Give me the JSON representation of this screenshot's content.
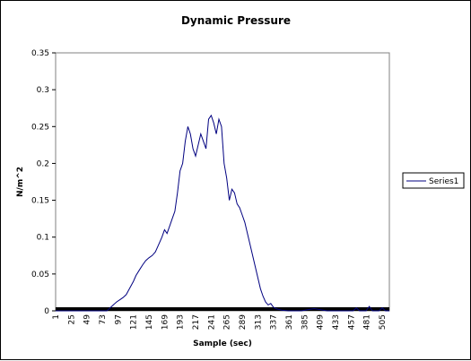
{
  "chart_data": {
    "type": "line",
    "title": "Dynamic Pressure",
    "xlabel": "Sample (sec)",
    "ylabel": "N/m^2",
    "ylim": [
      0,
      0.35
    ],
    "yticks": [
      "0",
      "0.05",
      "0.1",
      "0.15",
      "0.2",
      "0.25",
      "0.3",
      "0.35"
    ],
    "xlim": [
      1,
      516
    ],
    "xticks": [
      "1",
      "25",
      "49",
      "73",
      "97",
      "121",
      "145",
      "169",
      "193",
      "217",
      "241",
      "265",
      "289",
      "313",
      "337",
      "361",
      "385",
      "409",
      "433",
      "457",
      "481",
      "505"
    ],
    "grid": false,
    "legend_position": "right",
    "colors": {
      "series": "#000080",
      "axis": "#000000",
      "band": "#000000"
    },
    "series": [
      {
        "name": "Series1",
        "x": [
          1,
          80,
          85,
          90,
          95,
          100,
          105,
          110,
          115,
          121,
          125,
          130,
          135,
          140,
          145,
          150,
          155,
          160,
          165,
          169,
          173,
          177,
          181,
          185,
          189,
          193,
          197,
          201,
          205,
          209,
          213,
          217,
          221,
          225,
          229,
          233,
          237,
          241,
          245,
          249,
          253,
          257,
          261,
          265,
          269,
          273,
          277,
          281,
          285,
          289,
          293,
          297,
          301,
          305,
          309,
          313,
          317,
          321,
          325,
          329,
          333,
          337,
          341,
          345,
          350,
          360,
          380,
          400,
          420,
          440,
          460,
          465,
          470,
          480,
          485,
          490,
          500,
          505,
          510,
          516
        ],
        "values": [
          0,
          0,
          0.004,
          0.008,
          0.012,
          0.015,
          0.018,
          0.022,
          0.03,
          0.04,
          0.048,
          0.055,
          0.062,
          0.068,
          0.072,
          0.075,
          0.08,
          0.09,
          0.1,
          0.11,
          0.105,
          0.115,
          0.125,
          0.135,
          0.16,
          0.19,
          0.2,
          0.23,
          0.25,
          0.24,
          0.22,
          0.21,
          0.225,
          0.24,
          0.23,
          0.22,
          0.26,
          0.265,
          0.255,
          0.24,
          0.26,
          0.25,
          0.2,
          0.18,
          0.15,
          0.165,
          0.16,
          0.145,
          0.14,
          0.13,
          0.12,
          0.105,
          0.09,
          0.075,
          0.06,
          0.045,
          0.03,
          0.02,
          0.012,
          0.008,
          0.01,
          0.005,
          0.003,
          0.002,
          0.001,
          0,
          0,
          0.003,
          0,
          0,
          0,
          0.004,
          0,
          0,
          0.006,
          0,
          0,
          0.004,
          0,
          0
        ]
      }
    ]
  }
}
